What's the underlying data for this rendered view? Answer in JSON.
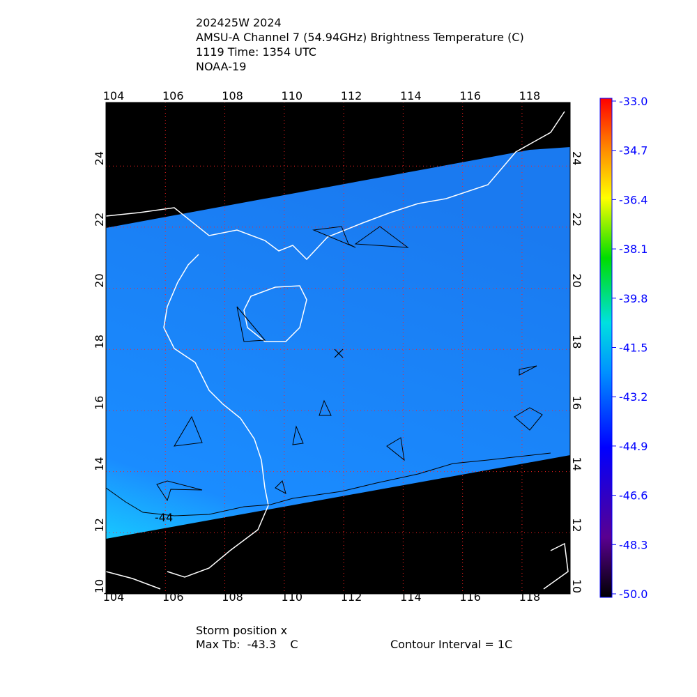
{
  "title_lines": [
    "202425W 2024",
    "AMSU-A Channel 7 (54.94GHz) Brightness Temperature (C)",
    "1119 Time: 1354 UTC",
    "NOAA-19"
  ],
  "map": {
    "xlim": [
      104,
      119.62
    ],
    "ylim": [
      10,
      26.08
    ],
    "xticks": [
      104,
      106,
      108,
      110,
      112,
      114,
      116,
      118
    ],
    "yticks": [
      10,
      12,
      14,
      16,
      18,
      20,
      22,
      24
    ],
    "grid": true,
    "contour_label": "-44"
  },
  "colorbar": {
    "lim": [
      -50,
      -33
    ],
    "ticks": [
      {
        "value": -33,
        "label": "-33.0"
      },
      {
        "value": -34.7,
        "label": "-34.7"
      },
      {
        "value": -36.4,
        "label": "-36.4"
      },
      {
        "value": -38.1,
        "label": "-38.1"
      },
      {
        "value": -39.8,
        "label": "-39.8"
      },
      {
        "value": -41.5,
        "label": "-41.5"
      },
      {
        "value": -43.2,
        "label": "-43.2"
      },
      {
        "value": -44.9,
        "label": "-44.9"
      },
      {
        "value": -46.6,
        "label": "-46.6"
      },
      {
        "value": -48.3,
        "label": "-48.3"
      },
      {
        "value": -50,
        "label": "-50.0"
      }
    ]
  },
  "footer": {
    "storm": "Storm position x",
    "max_tb": "Max Tb:  -43.3    C",
    "contour": "Contour Interval = 1C"
  }
}
